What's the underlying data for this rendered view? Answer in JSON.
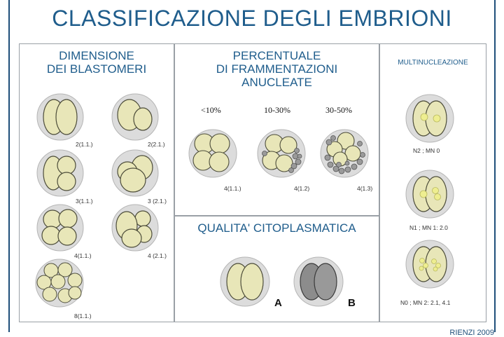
{
  "title": "CLASSIFICAZIONE DEGLI EMBRIONI",
  "blastomeri": {
    "heading_line1": "DIMENSIONE",
    "heading_line2": "DEI BLASTOMERI",
    "labels": [
      "2(1.1.)",
      "2(2.1.)",
      "3(1.1.)",
      "3 (2.1.)",
      "4(1.1.)",
      "4 (2.1.)",
      "8(1.1.)"
    ]
  },
  "frammentazioni": {
    "heading_line1": "PERCENTUALE",
    "heading_line2": "DI FRAMMENTAZIONI",
    "heading_line3": "ANUCLEATE",
    "percent_labels": [
      "<10%",
      "10-30%",
      "30-50%"
    ],
    "labels": [
      "4(1.1.)",
      "4(1.2)",
      "4(1.3)"
    ]
  },
  "citoplasmatica": {
    "heading": "QUALITA' CITOPLASMATICA",
    "grade_a": "A",
    "grade_b": "B"
  },
  "multinucleazione": {
    "heading": "MULTINUCLEAZIONE",
    "labels": [
      "N2 ; MN 0",
      "N1 ; MN 1: 2.0",
      "N0 ; MN 2: 2.1, 4.1"
    ]
  },
  "footer": "RIENZI 2009",
  "colors": {
    "title": "#1f5d8c",
    "cell_fill": "#e8e6b8",
    "cell_stroke": "#4d4d3a",
    "zona": "#dcdcdc",
    "fragment": "#9a9a9a",
    "grade_b_fill": "#8c8c8c"
  }
}
